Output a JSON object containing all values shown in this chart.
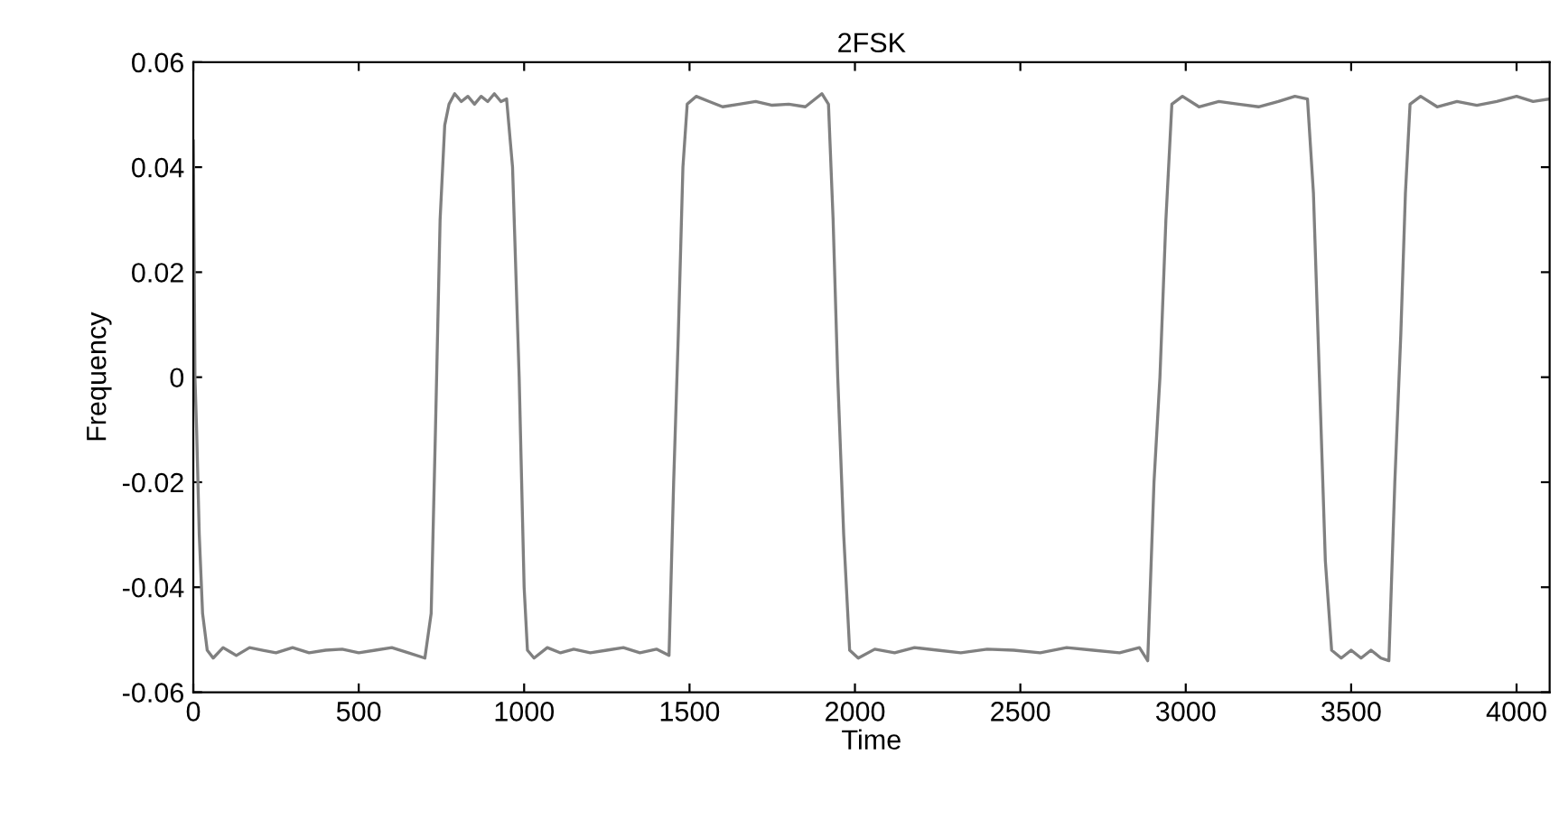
{
  "chart_data": {
    "type": "line",
    "title": "2FSK",
    "xlabel": "Time",
    "ylabel": "Frequency",
    "xlim": [
      0,
      4100
    ],
    "ylim": [
      -0.06,
      0.06
    ],
    "xticks": [
      0,
      500,
      1000,
      1500,
      2000,
      2500,
      3000,
      3500,
      4000
    ],
    "yticks": [
      -0.06,
      -0.04,
      -0.02,
      0,
      0.02,
      0.04,
      0.06
    ],
    "grid": false,
    "marker": "none",
    "line_style": "solid",
    "series": [
      {
        "color": "#808080",
        "x": [
          0,
          2,
          5,
          10,
          18,
          28,
          42,
          60,
          90,
          130,
          170,
          210,
          250,
          300,
          350,
          400,
          450,
          500,
          550,
          600,
          650,
          700,
          719,
          732,
          746,
          760,
          773,
          790,
          810,
          830,
          850,
          870,
          890,
          910,
          930,
          947,
          965,
          985,
          1000,
          1010,
          1030,
          1070,
          1110,
          1150,
          1200,
          1250,
          1300,
          1350,
          1400,
          1438,
          1452,
          1466,
          1480,
          1493,
          1520,
          1560,
          1600,
          1650,
          1700,
          1750,
          1800,
          1850,
          1900,
          1920,
          1934,
          1948,
          1966,
          1984,
          2010,
          2060,
          2120,
          2180,
          2250,
          2320,
          2400,
          2480,
          2560,
          2640,
          2720,
          2800,
          2860,
          2885,
          2904,
          2922,
          2940,
          2958,
          2990,
          3040,
          3100,
          3160,
          3220,
          3280,
          3330,
          3368,
          3386,
          3404,
          3422,
          3441,
          3470,
          3500,
          3530,
          3560,
          3590,
          3614,
          3632,
          3650,
          3664,
          3678,
          3710,
          3760,
          3820,
          3880,
          3940,
          4000,
          4050,
          4100
        ],
        "values": [
          0.045,
          0.028,
          0.0,
          -0.01,
          -0.03,
          -0.045,
          -0.052,
          -0.0535,
          -0.0515,
          -0.053,
          -0.0515,
          -0.052,
          -0.0525,
          -0.0515,
          -0.0525,
          -0.052,
          -0.0518,
          -0.0525,
          -0.052,
          -0.0515,
          -0.0525,
          -0.0535,
          -0.045,
          -0.01,
          0.03,
          0.048,
          0.052,
          0.054,
          0.0525,
          0.0535,
          0.052,
          0.0535,
          0.0525,
          0.054,
          0.0525,
          0.053,
          0.04,
          0.0,
          -0.04,
          -0.052,
          -0.0535,
          -0.0515,
          -0.0525,
          -0.0518,
          -0.0525,
          -0.052,
          -0.0515,
          -0.0525,
          -0.0518,
          -0.053,
          -0.02,
          0.008,
          0.04,
          0.052,
          0.0535,
          0.0525,
          0.0515,
          0.052,
          0.0525,
          0.0518,
          0.052,
          0.0515,
          0.054,
          0.052,
          0.03,
          0.0,
          -0.03,
          -0.052,
          -0.0535,
          -0.0518,
          -0.0525,
          -0.0515,
          -0.052,
          -0.0525,
          -0.0518,
          -0.052,
          -0.0525,
          -0.0515,
          -0.052,
          -0.0525,
          -0.0515,
          -0.054,
          -0.02,
          0.0,
          0.03,
          0.052,
          0.0535,
          0.0515,
          0.0525,
          0.052,
          0.0515,
          0.0525,
          0.0535,
          0.053,
          0.035,
          0.0,
          -0.035,
          -0.052,
          -0.0535,
          -0.052,
          -0.0535,
          -0.052,
          -0.0535,
          -0.054,
          -0.02,
          0.008,
          0.035,
          0.052,
          0.0535,
          0.0515,
          0.0525,
          0.0518,
          0.0525,
          0.0535,
          0.0525,
          0.053
        ]
      }
    ]
  }
}
